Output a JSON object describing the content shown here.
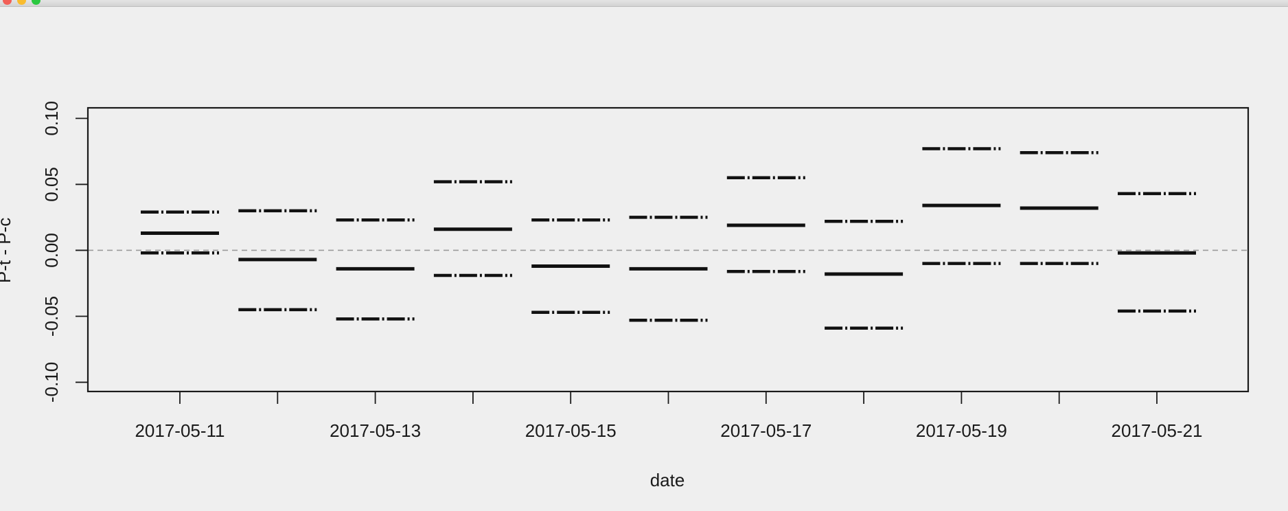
{
  "window": {
    "close_icon": "traffic-light-close",
    "minimize_icon": "traffic-light-minimize",
    "zoom_icon": "traffic-light-zoom"
  },
  "chart_data": {
    "type": "line",
    "title": "",
    "xlabel": "date",
    "ylabel": "P-t - P-c",
    "x_ticks": [
      "2017-05-11",
      "2017-05-12",
      "2017-05-13",
      "2017-05-14",
      "2017-05-15",
      "2017-05-16",
      "2017-05-17",
      "2017-05-18",
      "2017-05-19",
      "2017-05-20",
      "2017-05-21"
    ],
    "x_tick_labels": [
      "2017-05-11",
      "2017-05-13",
      "2017-05-15",
      "2017-05-17",
      "2017-05-19",
      "2017-05-21"
    ],
    "y_ticks": [
      -0.1,
      -0.05,
      0.0,
      0.05,
      0.1
    ],
    "y_tick_labels": [
      "-0.10",
      "-0.05",
      "0.00",
      "0.05",
      "0.10"
    ],
    "ylim": [
      -0.107,
      0.108
    ],
    "xlim": [
      "2017-05-10 (approx. 0.53 days before first tick)",
      "2017-05-21 (approx. 0.47 days after last tick)"
    ],
    "reference_line": {
      "y": 0.0,
      "style": "dashed",
      "color": "#9a9a9a"
    },
    "series": [
      {
        "name": "",
        "x": [
          "2017-05-11",
          "2017-05-12",
          "2017-05-13",
          "2017-05-14",
          "2017-05-15",
          "2017-05-16",
          "2017-05-17",
          "2017-05-18",
          "2017-05-19",
          "2017-05-20",
          "2017-05-21"
        ],
        "estimate": [
          0.013,
          -0.007,
          -0.014,
          0.016,
          -0.012,
          -0.014,
          0.019,
          -0.018,
          0.034,
          0.032,
          -0.002
        ],
        "upper": [
          0.029,
          0.03,
          0.023,
          0.052,
          0.023,
          0.025,
          0.055,
          0.022,
          0.077,
          0.074,
          0.043
        ],
        "lower": [
          -0.002,
          -0.045,
          -0.052,
          -0.019,
          -0.047,
          -0.053,
          -0.016,
          -0.059,
          -0.01,
          -0.01,
          -0.046
        ]
      }
    ],
    "grid": false,
    "legend": "none"
  }
}
